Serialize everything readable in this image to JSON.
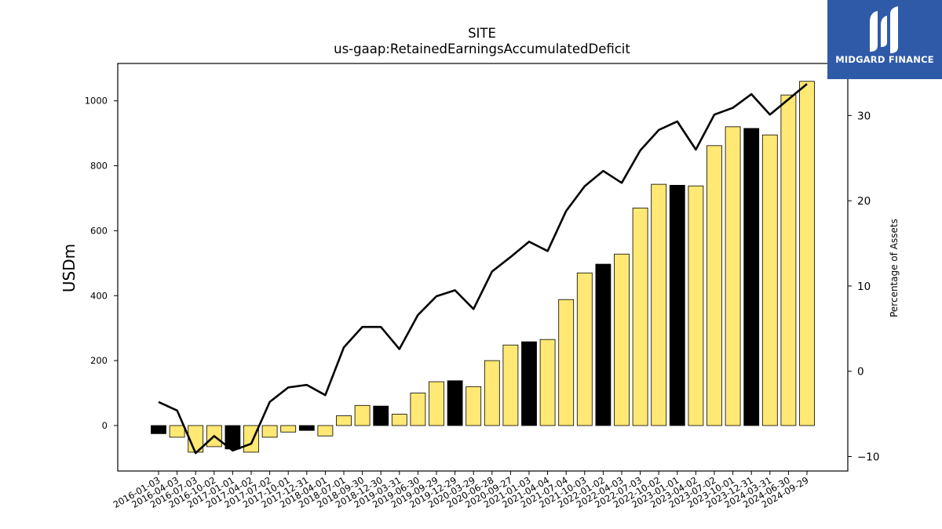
{
  "brand": {
    "name": "MIDGARD FINANCE",
    "color": "#2f5aa8"
  },
  "colors": {
    "bar_normal": "#ffe873",
    "bar_highlight": "#000000",
    "line": "#000000"
  },
  "chart_data": {
    "type": "bar",
    "title": "SITE",
    "subtitle": "us-gaap:RetainedEarningsAccumulatedDeficit",
    "ylabel": "USDm",
    "y2label": "Percentage of Assets",
    "ylim": [
      -140,
      1115
    ],
    "y2lim": [
      -11.7,
      36.1
    ],
    "yticks": [
      0,
      200,
      400,
      600,
      800,
      1000
    ],
    "y2ticks": [
      -10,
      0,
      10,
      20,
      30
    ],
    "grid": false,
    "categories": [
      "2016-01-03",
      "2016-04-03",
      "2016-07-03",
      "2016-10-02",
      "2017-01-01",
      "2017-04-02",
      "2017-07-02",
      "2017-10-01",
      "2017-12-31",
      "2018-04-01",
      "2018-07-01",
      "2018-09-30",
      "2018-12-30",
      "2019-03-31",
      "2019-06-30",
      "2019-09-29",
      "2019-12-29",
      "2020-03-29",
      "2020-06-28",
      "2020-09-27",
      "2021-01-03",
      "2021-04-04",
      "2021-07-04",
      "2021-10-03",
      "2022-01-02",
      "2022-04-03",
      "2022-07-03",
      "2022-10-02",
      "2023-01-01",
      "2023-04-02",
      "2023-07-02",
      "2023-10-01",
      "2023-12-31",
      "2024-03-31",
      "2024-06-30",
      "2024-09-29"
    ],
    "series": [
      {
        "type": "bar",
        "values": [
          -25,
          -36,
          -82,
          -65,
          -72,
          -82,
          -36,
          -20,
          -15,
          -32,
          30,
          62,
          60,
          35,
          100,
          135,
          138,
          120,
          200,
          248,
          258,
          265,
          388,
          470,
          497,
          528,
          670,
          743,
          740,
          738,
          862,
          920,
          915,
          895,
          1018,
          1060
        ],
        "highlight": [
          true,
          false,
          false,
          false,
          true,
          false,
          false,
          false,
          true,
          false,
          false,
          false,
          true,
          false,
          false,
          false,
          true,
          false,
          false,
          false,
          true,
          false,
          false,
          false,
          true,
          false,
          false,
          false,
          true,
          false,
          false,
          false,
          true,
          false,
          false,
          false
        ]
      },
      {
        "type": "line",
        "axis": "right",
        "values": [
          -3.6,
          -4.6,
          -9.6,
          -7.6,
          -9.3,
          -8.5,
          -3.6,
          -1.9,
          -1.6,
          -2.8,
          2.8,
          5.2,
          5.2,
          2.6,
          6.6,
          8.8,
          9.5,
          7.3,
          11.7,
          13.4,
          15.2,
          14.1,
          18.8,
          21.7,
          23.5,
          22.1,
          25.9,
          28.3,
          29.3,
          26.0,
          30.1,
          30.9,
          32.5,
          30.1,
          31.9,
          33.7
        ]
      }
    ]
  }
}
